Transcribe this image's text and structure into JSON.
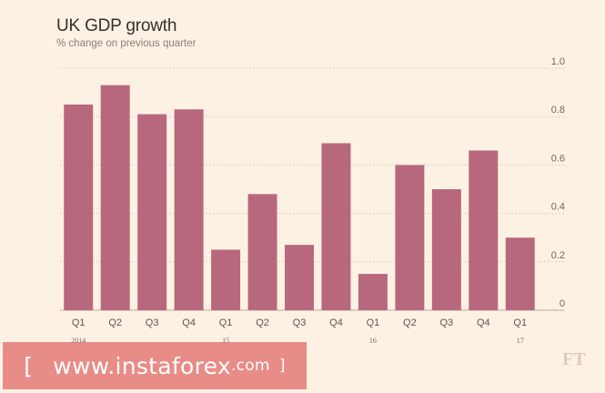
{
  "chart_data": {
    "type": "bar",
    "title": "UK GDP growth",
    "subtitle": "% change on previous quarter",
    "categories": [
      "Q1",
      "Q2",
      "Q3",
      "Q4",
      "Q1",
      "Q2",
      "Q3",
      "Q4",
      "Q1",
      "Q2",
      "Q3",
      "Q4",
      "Q1"
    ],
    "year_labels": [
      "2014",
      "",
      "",
      "",
      "15",
      "",
      "",
      "",
      "16",
      "",
      "",
      "",
      "17"
    ],
    "values": [
      0.85,
      0.93,
      0.81,
      0.83,
      0.25,
      0.48,
      0.27,
      0.69,
      0.15,
      0.6,
      0.5,
      0.66,
      0.3
    ],
    "ylim": [
      0,
      1.0
    ],
    "yticks": [
      "0",
      "0.2",
      "0.4",
      "0.6",
      "0.8",
      "1.0"
    ],
    "y_axis_side": "right",
    "grid": true,
    "colors": {
      "bar": "#b8687c",
      "grid": "#ddd0c3",
      "background": "#fdf1e4"
    }
  },
  "watermark": {
    "bracket_left": "[",
    "url_main": "www.instaforex",
    "url_tld": ".com",
    "bracket_right": "]"
  },
  "footer": {
    "logo": "FT"
  }
}
